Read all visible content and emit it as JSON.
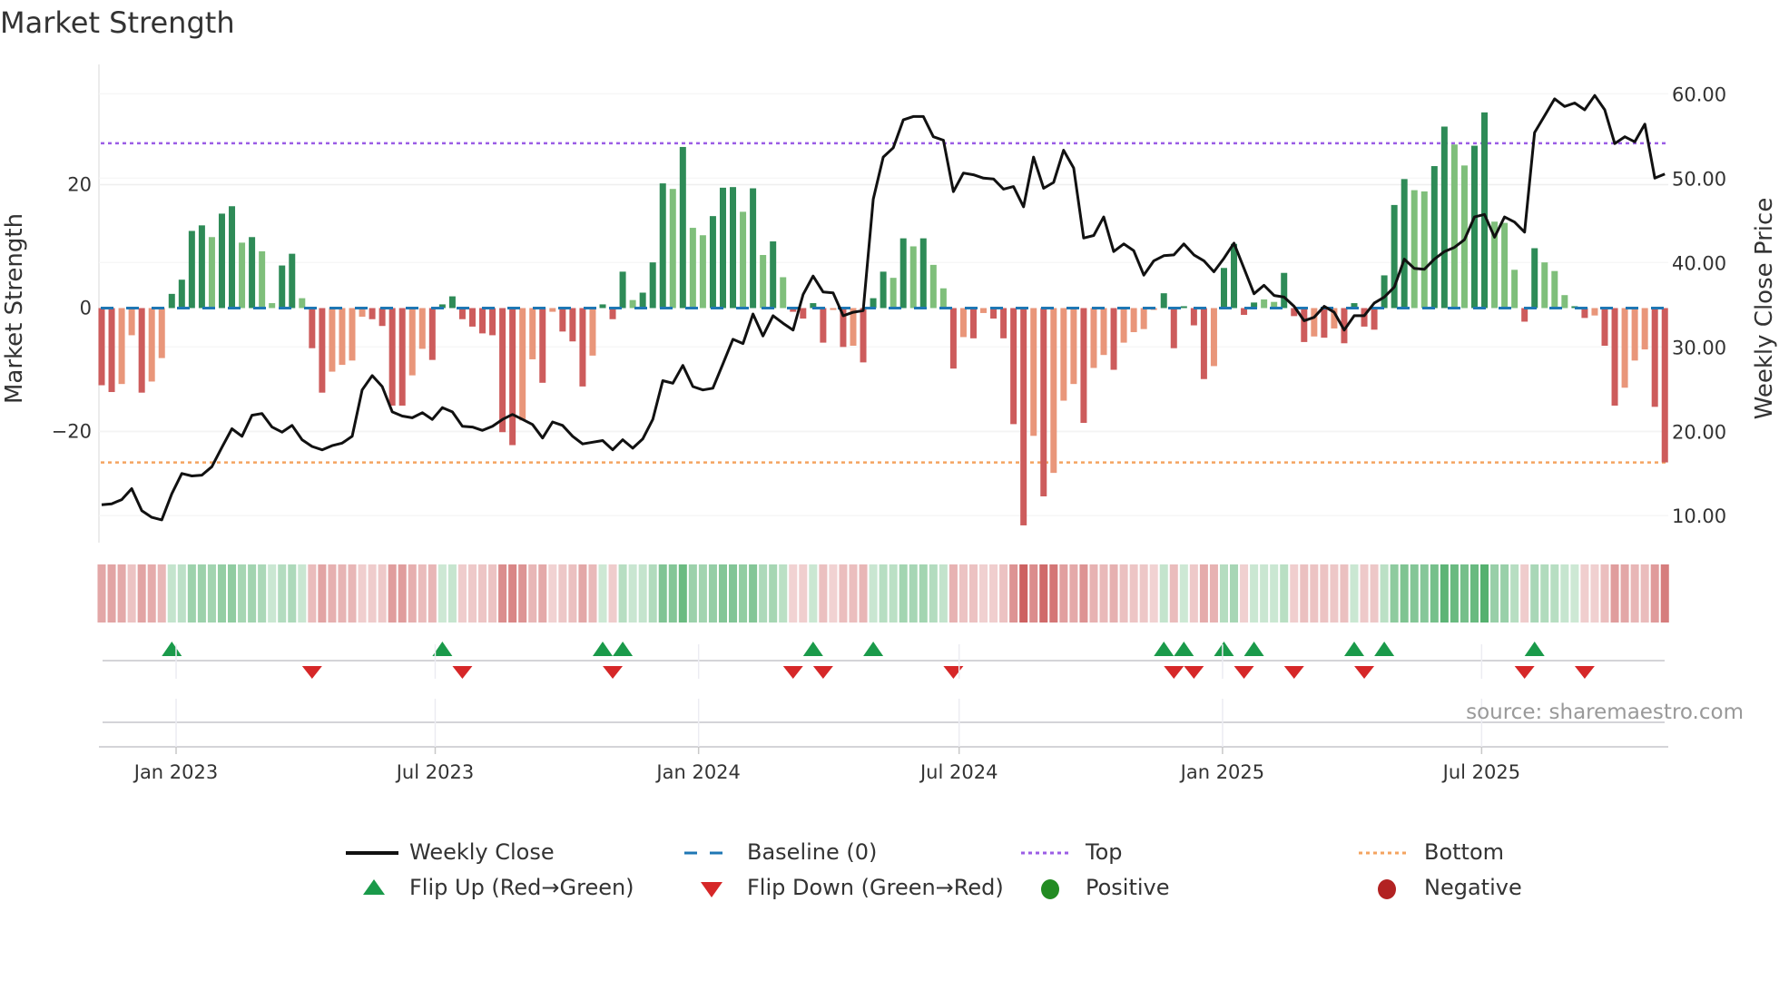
{
  "title": "Market Strength",
  "source": "source: sharemaestro.com",
  "legend": {
    "weekly_close": "Weekly Close",
    "baseline": "Baseline (0)",
    "top": "Top",
    "bottom": "Bottom",
    "flip_up": "Flip Up (Red→Green)",
    "flip_down": "Flip Down (Green→Red)",
    "positive": "Positive",
    "negative": "Negative"
  },
  "colors": {
    "strong_green": "#2e8b57",
    "light_green": "#7fbf7b",
    "strong_red": "#cd5c5c",
    "light_red": "#e9967a",
    "close": "#111111",
    "baseline": "#1f77b4",
    "top": "#9b5de5",
    "bottom": "#f4a460",
    "flip_up": "#1a9a4a",
    "flip_down": "#d62728",
    "positive": "#228b22",
    "negative": "#b22222"
  },
  "chart_data": {
    "type": "bar+line",
    "title": "Market Strength",
    "ylabel_left": "Market Strength",
    "ylabel_right": "Weekly Close Price",
    "frequency": "weekly",
    "start_date": "2022-11-10",
    "ylim_left": [
      -38,
      38
    ],
    "ylim_right": [
      6.8,
      62.4
    ],
    "left_ticks": [
      {
        "v": 20,
        "label": "20"
      },
      {
        "v": 0,
        "label": "0"
      },
      {
        "v": -20,
        "label": "−20"
      }
    ],
    "right_ticks": [
      {
        "v": 60,
        "label": "60.00"
      },
      {
        "v": 50,
        "label": "50.00"
      },
      {
        "v": 40,
        "label": "40.00"
      },
      {
        "v": 30,
        "label": "30.00"
      },
      {
        "v": 20,
        "label": "20.00"
      },
      {
        "v": 10,
        "label": "10.00"
      }
    ],
    "x_ticks": [
      {
        "date": "2023-01-01",
        "label": "Jan 2023"
      },
      {
        "date": "2023-07-01",
        "label": "Jul 2023"
      },
      {
        "date": "2024-01-01",
        "label": "Jan 2024"
      },
      {
        "date": "2024-07-01",
        "label": "Jul 2024"
      },
      {
        "date": "2025-01-01",
        "label": "Jan 2025"
      },
      {
        "date": "2025-07-01",
        "label": "Jul 2025"
      }
    ],
    "top_level": 26.7,
    "bottom_level": -25.0,
    "baseline": 0,
    "strength": [
      -12.5,
      -13.6,
      -12.3,
      -4.4,
      -13.7,
      -11.9,
      -8.1,
      2.3,
      4.6,
      12.5,
      13.4,
      11.5,
      15.3,
      16.5,
      10.6,
      11.5,
      9.2,
      0.8,
      6.9,
      8.8,
      1.6,
      -6.5,
      -13.7,
      -10.3,
      -9.2,
      -8.5,
      -1.4,
      -1.8,
      -2.9,
      -15.8,
      -15.8,
      -10.9,
      -6.6,
      -8.4,
      0.6,
      1.9,
      -1.8,
      -3.0,
      -4.1,
      -4.4,
      -20.1,
      -22.2,
      -18.2,
      -8.3,
      -12.1,
      -0.6,
      -3.8,
      -5.4,
      -12.7,
      -7.7,
      0.6,
      -1.8,
      5.9,
      1.3,
      2.5,
      7.4,
      20.2,
      19.3,
      26.1,
      13.0,
      11.8,
      14.9,
      19.5,
      19.6,
      15.6,
      19.4,
      8.6,
      10.8,
      5.0,
      -0.6,
      -1.7,
      0.8,
      -5.6,
      -0.3,
      -6.3,
      -6.1,
      -8.8,
      1.6,
      5.9,
      4.9,
      11.3,
      10.0,
      11.3,
      7.0,
      3.2,
      -9.8,
      -4.7,
      -4.9,
      -0.8,
      -1.7,
      -4.9,
      -18.8,
      -35.2,
      -20.7,
      -30.5,
      -26.7,
      -15.0,
      -12.3,
      -18.6,
      -9.7,
      -7.6,
      -10.0,
      -5.6,
      -3.9,
      -3.4,
      -0.3,
      2.4,
      -6.5,
      0.3,
      -2.8,
      -11.5,
      -9.4,
      6.5,
      10.4,
      -1.1,
      0.9,
      1.4,
      1.0,
      5.7,
      -1.3,
      -5.5,
      -4.6,
      -4.8,
      -3.3,
      -5.7,
      0.8,
      -3.0,
      -3.5,
      5.3,
      16.7,
      20.9,
      19.1,
      18.9,
      23.0,
      29.4,
      26.5,
      23.1,
      26.3,
      31.7,
      14.0,
      13.8,
      6.2,
      -2.2,
      9.7,
      7.4,
      6.0,
      2.1,
      0.3,
      -1.6,
      -1.2,
      -6.1,
      -15.8,
      -12.9,
      -8.5,
      -6.7,
      -16.0,
      -25.0
    ],
    "shade": "RRrrRrrGGGGgGGgGggGGgRRrrrrRRRRrrRGGRRRRRRrrRrRRRrGRGgGGGgGggGGGgGgGgRRGRrRrRGGgGgGggRrRrRRRRrRrrrRrrRrrrrGRGRRrGGRGggGRRrRrRGRRGGGggGGggGGgggRGgggGRrRRrrrRR",
    "close": [
      11.3,
      11.4,
      11.9,
      13.2,
      10.6,
      9.8,
      9.5,
      12.6,
      15.0,
      14.7,
      14.8,
      15.8,
      18.1,
      20.3,
      19.4,
      21.9,
      22.1,
      20.5,
      19.9,
      20.7,
      19.0,
      18.2,
      17.8,
      18.3,
      18.6,
      19.4,
      24.9,
      26.6,
      25.3,
      22.3,
      21.8,
      21.6,
      22.2,
      21.4,
      22.8,
      22.3,
      20.6,
      20.5,
      20.1,
      20.6,
      21.4,
      22.0,
      21.4,
      20.8,
      19.2,
      21.1,
      20.7,
      19.4,
      18.5,
      18.7,
      18.9,
      17.8,
      19.0,
      18.0,
      19.1,
      21.4,
      26.0,
      25.7,
      27.8,
      25.3,
      24.9,
      25.1,
      28.0,
      30.9,
      30.4,
      33.9,
      31.3,
      33.7,
      32.8,
      32.0,
      36.2,
      38.4,
      36.5,
      36.4,
      33.7,
      34.1,
      34.3,
      47.5,
      52.5,
      53.6,
      56.9,
      57.3,
      57.3,
      54.9,
      54.5,
      48.4,
      50.6,
      50.4,
      50.0,
      49.9,
      48.7,
      49.0,
      46.6,
      52.5,
      48.8,
      49.5,
      53.3,
      51.2,
      42.9,
      43.2,
      45.4,
      41.3,
      42.2,
      41.4,
      38.5,
      40.2,
      40.8,
      40.9,
      42.2,
      40.9,
      40.2,
      38.9,
      40.5,
      42.3,
      39.3,
      36.3,
      37.3,
      36.1,
      35.9,
      34.8,
      33.1,
      33.5,
      34.8,
      34.1,
      32.0,
      33.7,
      33.7,
      35.2,
      35.9,
      37.1,
      40.4,
      39.3,
      39.2,
      40.4,
      41.3,
      41.8,
      42.7,
      45.4,
      45.7,
      43.0,
      45.4,
      44.8,
      43.6,
      55.4,
      57.4,
      59.4,
      58.5,
      58.9,
      58.1,
      59.8,
      58.1,
      54.1,
      54.9,
      54.3,
      56.4,
      50.0,
      50.5
    ],
    "grid": true,
    "legend_position": "bottom"
  }
}
